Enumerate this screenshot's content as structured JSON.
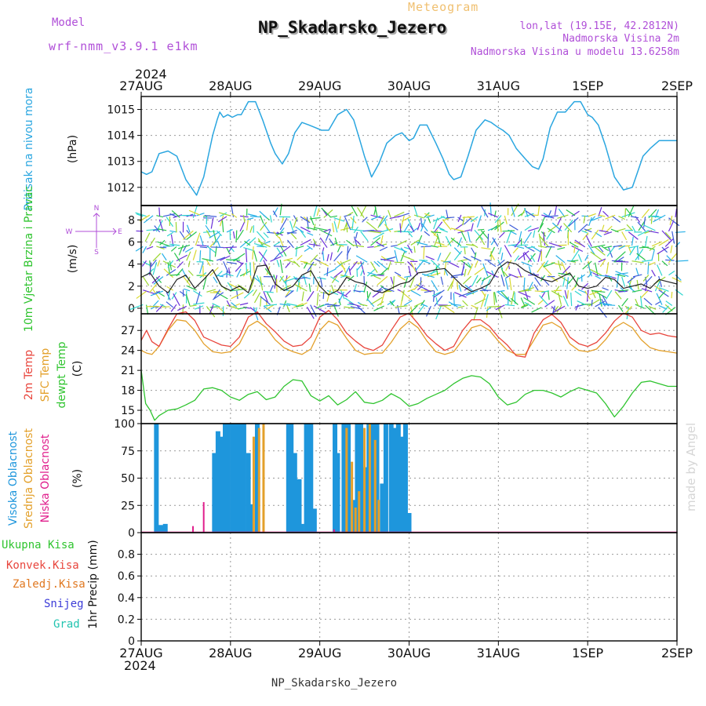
{
  "header": {
    "model_label": "Model",
    "model_name": "wrf-nmm_v3.9.1 e1km",
    "meteogram_label": "Meteogram",
    "station_title": "NP_Skadarsko_Jezero",
    "lonlat": "lon,lat (19.15E, 42.2812N)",
    "altitude": "Nadmorska Visina 2m",
    "model_altitude": "Nadmorska Visina u modelu 13.6258m",
    "top_year": "2024",
    "bottom_year": "2024",
    "footer": "NP_Skadarsko_Jezero",
    "credit": "made by Angel"
  },
  "colors": {
    "pressure": "#2aa6e0",
    "temp2m": "#e8453c",
    "sfc": "#e3a02a",
    "dewpt": "#2fc42f",
    "high_cloud": "#1e96dc",
    "mid_cloud": "#e3a02a",
    "low_cloud": "#e01e8c",
    "axis": "#000000",
    "grid": "#999999",
    "title_purple": "#b04fd8",
    "meteogram_orange": "#f0c070"
  },
  "time_axis": {
    "ticks": [
      "27AUG",
      "28AUG",
      "29AUG",
      "30AUG",
      "31AUG",
      "1SEP",
      "2SEP"
    ],
    "days": 6
  },
  "chart_data": [
    {
      "type": "line",
      "panel": "pressure",
      "ylabel": "Pritisak na nivou mora",
      "unit": "(hPa)",
      "ylim": [
        1011.3,
        1015.5
      ],
      "yticks": [
        1012,
        1013,
        1014,
        1015
      ],
      "series": [
        {
          "t": [
            0,
            0.06,
            0.12,
            0.2,
            0.3,
            0.4,
            0.5,
            0.62,
            0.7,
            0.8,
            0.85,
            0.88,
            0.92,
            0.97,
            1.02,
            1.08,
            1.12,
            1.2,
            1.28,
            1.36,
            1.45,
            1.5,
            1.58,
            1.65,
            1.72,
            1.8,
            1.88,
            1.95,
            2.02,
            2.1,
            2.2,
            2.3,
            2.38,
            2.45,
            2.5,
            2.58,
            2.66,
            2.75,
            2.85,
            2.92,
            3.0,
            3.05,
            3.12,
            3.2,
            3.3,
            3.38,
            3.45,
            3.5,
            3.58,
            3.66,
            3.75,
            3.85,
            3.92,
            4.0,
            4.05,
            4.12,
            4.2,
            4.3,
            4.38,
            4.45,
            4.5,
            4.58,
            4.66,
            4.75,
            4.85,
            4.92,
            5.0,
            5.05,
            5.12,
            5.2,
            5.3,
            5.4,
            5.5,
            5.55,
            5.62,
            5.7,
            5.8,
            5.9,
            6.0
          ],
          "values": [
            1012.6,
            1012.5,
            1012.6,
            1013.3,
            1013.4,
            1013.2,
            1012.3,
            1011.7,
            1012.4,
            1014.0,
            1014.6,
            1014.9,
            1014.7,
            1014.8,
            1014.7,
            1014.8,
            1014.8,
            1015.3,
            1015.3,
            1014.6,
            1013.7,
            1013.3,
            1012.9,
            1013.3,
            1014.1,
            1014.5,
            1014.4,
            1014.3,
            1014.2,
            1014.2,
            1014.8,
            1015.0,
            1014.6,
            1013.8,
            1013.2,
            1012.4,
            1012.9,
            1013.7,
            1014.0,
            1014.1,
            1013.8,
            1013.9,
            1014.4,
            1014.4,
            1013.7,
            1013.1,
            1012.5,
            1012.3,
            1012.4,
            1013.2,
            1014.2,
            1014.6,
            1014.5,
            1014.3,
            1014.2,
            1014.0,
            1013.5,
            1013.1,
            1012.8,
            1012.7,
            1013.1,
            1014.3,
            1014.9,
            1014.9,
            1015.3,
            1015.3,
            1014.8,
            1014.7,
            1014.4,
            1013.6,
            1012.4,
            1011.9,
            1012.0,
            1012.5,
            1013.2,
            1013.5,
            1013.8,
            1013.8,
            1013.8
          ]
        }
      ]
    },
    {
      "type": "line",
      "panel": "wind",
      "ylabel": "10m Vjetar Brzina i Pravac",
      "unit": "(m/s)",
      "compass": [
        "N",
        "S",
        "W",
        "E"
      ],
      "ylim": [
        -0.5,
        9.3
      ],
      "yticks": [
        0,
        2,
        4,
        6,
        8
      ],
      "series": [
        {
          "name": "speed",
          "t": [
            0,
            0.1,
            0.2,
            0.3,
            0.4,
            0.5,
            0.6,
            0.7,
            0.8,
            0.9,
            1.0,
            1.1,
            1.2,
            1.3,
            1.4,
            1.5,
            1.6,
            1.7,
            1.8,
            1.9,
            2.0,
            2.1,
            2.2,
            2.3,
            2.4,
            2.5,
            2.6,
            2.7,
            2.8,
            2.9,
            3.0,
            3.1,
            3.2,
            3.3,
            3.4,
            3.5,
            3.6,
            3.7,
            3.8,
            3.9,
            4.0,
            4.1,
            4.2,
            4.3,
            4.4,
            4.5,
            4.6,
            4.7,
            4.8,
            4.9,
            5.0,
            5.1,
            5.2,
            5.3,
            5.4,
            5.5,
            5.6,
            5.7,
            5.8,
            5.9,
            6.0
          ],
          "values": [
            2.8,
            3.2,
            2.0,
            1.4,
            2.6,
            3.0,
            1.8,
            2.6,
            3.5,
            2.0,
            1.6,
            2.0,
            1.4,
            3.8,
            3.9,
            2.2,
            1.6,
            2.0,
            3.0,
            3.4,
            2.0,
            1.2,
            1.6,
            2.8,
            2.4,
            2.2,
            1.6,
            1.4,
            1.8,
            2.2,
            2.4,
            3.2,
            3.3,
            3.5,
            3.6,
            2.8,
            2.0,
            1.5,
            1.8,
            2.2,
            3.6,
            4.2,
            4.0,
            3.4,
            3.0,
            2.6,
            2.4,
            2.8,
            3.2,
            2.0,
            1.8,
            2.0,
            2.8,
            2.6,
            1.8,
            2.0,
            2.2,
            1.8,
            2.6,
            2.4,
            2.2
          ]
        }
      ]
    },
    {
      "type": "line",
      "panel": "temperature",
      "ylabel_lines": [
        "2m Temp",
        "SFC Temp",
        "dewpt Temp"
      ],
      "unit": "(C)",
      "ylim": [
        13,
        29.5
      ],
      "yticks": [
        15,
        18,
        21,
        24,
        27
      ],
      "series": [
        {
          "name": "2m Temp",
          "t": [
            0,
            0.06,
            0.12,
            0.2,
            0.3,
            0.4,
            0.5,
            0.6,
            0.7,
            0.8,
            0.9,
            1.0,
            1.1,
            1.2,
            1.3,
            1.4,
            1.5,
            1.6,
            1.7,
            1.8,
            1.9,
            2.0,
            2.1,
            2.2,
            2.3,
            2.4,
            2.5,
            2.6,
            2.7,
            2.8,
            2.9,
            3.0,
            3.1,
            3.2,
            3.3,
            3.4,
            3.5,
            3.6,
            3.7,
            3.8,
            3.9,
            4.0,
            4.1,
            4.2,
            4.3,
            4.4,
            4.5,
            4.6,
            4.7,
            4.8,
            4.9,
            5.0,
            5.1,
            5.2,
            5.3,
            5.4,
            5.5,
            5.6,
            5.7,
            5.8,
            5.9,
            6.0
          ],
          "values": [
            25.5,
            27.0,
            25.3,
            24.6,
            27.2,
            29.5,
            29.8,
            28.5,
            26.0,
            25.4,
            24.8,
            24.6,
            26.0,
            29.0,
            29.8,
            28.0,
            26.8,
            25.4,
            24.6,
            24.8,
            26.0,
            29.0,
            30.0,
            28.6,
            26.6,
            25.4,
            24.4,
            24.0,
            24.8,
            27.0,
            29.0,
            29.6,
            28.0,
            26.2,
            25.0,
            24.0,
            24.6,
            27.0,
            28.6,
            28.6,
            27.6,
            26.0,
            24.8,
            23.2,
            23.0,
            26.6,
            28.6,
            29.4,
            28.2,
            26.0,
            25.0,
            24.6,
            25.2,
            26.6,
            28.4,
            29.6,
            29.0,
            27.0,
            26.4,
            26.6,
            26.2,
            26.0
          ]
        },
        {
          "name": "SFC Temp",
          "t": [
            0,
            0.06,
            0.12,
            0.2,
            0.3,
            0.4,
            0.5,
            0.6,
            0.7,
            0.8,
            0.9,
            1.0,
            1.1,
            1.2,
            1.3,
            1.4,
            1.5,
            1.6,
            1.7,
            1.8,
            1.9,
            2.0,
            2.1,
            2.2,
            2.3,
            2.4,
            2.5,
            2.6,
            2.7,
            2.8,
            2.9,
            3.0,
            3.1,
            3.2,
            3.3,
            3.4,
            3.5,
            3.6,
            3.7,
            3.8,
            3.9,
            4.0,
            4.1,
            4.2,
            4.3,
            4.4,
            4.5,
            4.6,
            4.7,
            4.8,
            4.9,
            5.0,
            5.1,
            5.2,
            5.3,
            5.4,
            5.5,
            5.6,
            5.7,
            5.8,
            5.9,
            6.0
          ],
          "values": [
            24.0,
            23.6,
            23.4,
            24.6,
            27.0,
            28.6,
            28.4,
            27.0,
            25.0,
            23.8,
            23.6,
            23.8,
            25.0,
            27.6,
            28.4,
            27.4,
            25.6,
            24.4,
            23.8,
            23.4,
            24.2,
            27.0,
            28.4,
            27.8,
            25.8,
            24.0,
            23.4,
            23.6,
            23.6,
            25.2,
            27.2,
            28.4,
            27.4,
            25.4,
            23.8,
            23.4,
            23.8,
            25.6,
            27.4,
            27.8,
            27.0,
            25.4,
            24.0,
            23.4,
            23.4,
            25.6,
            27.8,
            28.2,
            27.4,
            25.0,
            24.0,
            23.8,
            24.2,
            25.6,
            27.4,
            28.2,
            27.4,
            25.6,
            24.4,
            24.0,
            23.8,
            23.6
          ]
        },
        {
          "name": "dewpt Temp",
          "t": [
            0,
            0.05,
            0.1,
            0.15,
            0.2,
            0.3,
            0.4,
            0.5,
            0.6,
            0.7,
            0.8,
            0.9,
            1.0,
            1.1,
            1.2,
            1.3,
            1.4,
            1.5,
            1.6,
            1.7,
            1.8,
            1.9,
            2.0,
            2.1,
            2.2,
            2.3,
            2.4,
            2.5,
            2.6,
            2.7,
            2.8,
            2.9,
            3.0,
            3.1,
            3.2,
            3.3,
            3.4,
            3.5,
            3.6,
            3.7,
            3.8,
            3.9,
            4.0,
            4.1,
            4.2,
            4.3,
            4.4,
            4.5,
            4.6,
            4.7,
            4.8,
            4.9,
            5.0,
            5.1,
            5.2,
            5.3,
            5.4,
            5.5,
            5.6,
            5.7,
            5.8,
            5.9,
            6.0
          ],
          "values": [
            21.0,
            16.0,
            15.0,
            13.5,
            14.2,
            15.0,
            15.2,
            15.8,
            16.5,
            18.2,
            18.4,
            18.0,
            17.0,
            16.5,
            17.4,
            17.8,
            16.6,
            17.0,
            18.6,
            19.6,
            19.4,
            17.2,
            16.4,
            17.2,
            15.8,
            16.6,
            17.8,
            16.2,
            16.0,
            16.5,
            17.5,
            16.8,
            15.6,
            16.0,
            16.8,
            17.4,
            18.0,
            19.0,
            19.8,
            20.2,
            20.0,
            19.0,
            17.0,
            15.8,
            16.2,
            17.4,
            18.0,
            18.0,
            17.6,
            17.0,
            17.8,
            18.4,
            18.0,
            17.6,
            16.0,
            14.0,
            15.6,
            17.6,
            19.2,
            19.4,
            19.0,
            18.6,
            18.6
          ]
        }
      ]
    },
    {
      "type": "bar",
      "panel": "clouds",
      "ylabel_lines": [
        "Visoka Oblacnost",
        "Srednja Oblacnost",
        "Niska Oblacnost"
      ],
      "unit": "(%)",
      "ylim": [
        0,
        100
      ],
      "yticks": [
        0,
        25,
        50,
        75,
        100
      ],
      "series": [
        {
          "name": "Visoka Oblacnost",
          "t": [
            0.17,
            0.22,
            0.27,
            0.82,
            0.86,
            0.9,
            0.94,
            0.97,
            1.02,
            1.05,
            1.1,
            1.15,
            1.2,
            1.24,
            1.3,
            1.65,
            1.68,
            1.72,
            1.77,
            1.8,
            1.85,
            1.9,
            1.94,
            2.17,
            2.2,
            2.27,
            2.32,
            2.38,
            2.42,
            2.46,
            2.5,
            2.55,
            2.6,
            2.64,
            2.7,
            2.74,
            2.8,
            2.84,
            2.88,
            2.92,
            2.96,
            3.0
          ],
          "values": [
            100,
            7,
            8,
            73,
            93,
            88,
            100,
            100,
            100,
            100,
            100,
            100,
            73,
            26,
            100,
            100,
            100,
            73,
            49,
            8,
            100,
            100,
            22,
            100,
            73,
            100,
            100,
            30,
            100,
            100,
            60,
            100,
            100,
            100,
            45,
            100,
            100,
            96,
            100,
            88,
            100,
            18
          ]
        },
        {
          "name": "Srednja Oblacnost",
          "t": [
            1.26,
            1.32,
            1.37,
            2.3,
            2.36,
            2.4,
            2.44,
            2.5,
            2.56,
            2.62,
            2.66
          ],
          "values": [
            88,
            96,
            100,
            96,
            65,
            23,
            38,
            96,
            100,
            85,
            30
          ]
        },
        {
          "name": "Niska Oblacnost",
          "t": [
            0.58,
            0.7,
            2.16
          ],
          "values": [
            6,
            28,
            3
          ]
        }
      ]
    },
    {
      "type": "bar",
      "panel": "precip",
      "ylabel": "1hr Precip",
      "unit": "(mm)",
      "ylim": [
        0,
        1
      ],
      "yticks": [
        0,
        0.2,
        0.4,
        0.6,
        0.8
      ],
      "legend_lines": [
        "Ukupna Kisa",
        "Konvek.Kisa",
        "Zaledj.Kisa",
        "Snijeg",
        "Grad"
      ],
      "series": []
    }
  ]
}
